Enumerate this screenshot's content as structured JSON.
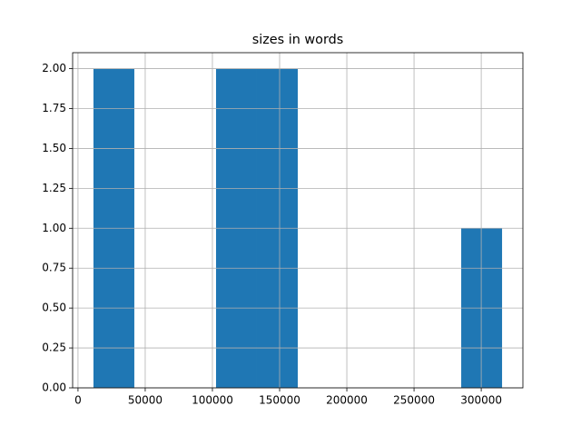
{
  "chart_data": {
    "type": "histogram",
    "title": "sizes in words",
    "bins": [
      11500,
      41900,
      72300,
      102700,
      133100,
      163500,
      193900,
      224300,
      254700,
      285100,
      315500
    ],
    "values": [
      2,
      0,
      0,
      2,
      2,
      0,
      0,
      0,
      0,
      1
    ],
    "color": "#1f77b4",
    "xlim": [
      -4000,
      331000
    ],
    "xticks": [
      0,
      50000,
      100000,
      150000,
      200000,
      250000,
      300000
    ],
    "ylim": [
      0,
      2.1
    ],
    "yticks": [
      {
        "value": 0,
        "label": "0.00"
      },
      {
        "value": 0.25,
        "label": "0.25"
      },
      {
        "value": 0.5,
        "label": "0.50"
      },
      {
        "value": 0.75,
        "label": "0.75"
      },
      {
        "value": 1,
        "label": "1.00"
      },
      {
        "value": 1.25,
        "label": "1.25"
      },
      {
        "value": 1.5,
        "label": "1.50"
      },
      {
        "value": 1.75,
        "label": "1.75"
      },
      {
        "value": 2,
        "label": "2.00"
      }
    ],
    "grid": true
  }
}
